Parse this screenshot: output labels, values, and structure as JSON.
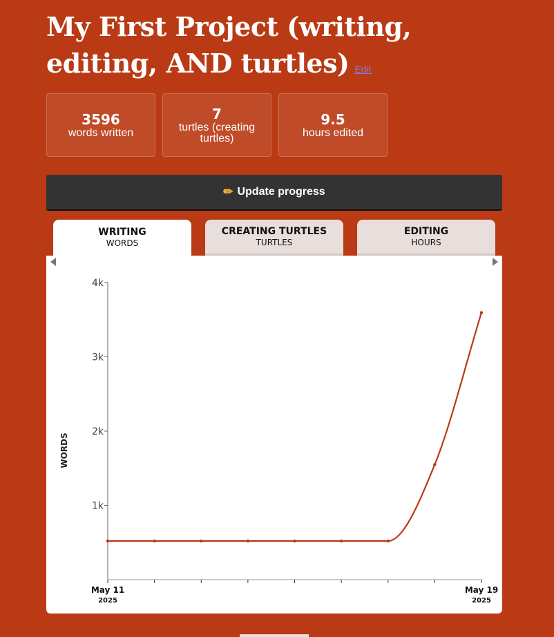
{
  "project": {
    "title": "My First Project (writing, editing, AND turtles)",
    "edit_label": "Edit"
  },
  "stats": [
    {
      "value": "3596",
      "label": "words written"
    },
    {
      "value": "7",
      "label": "turtles (creating turtles)"
    },
    {
      "value": "9.5",
      "label": "hours edited"
    }
  ],
  "update_button": {
    "icon": "pencil-icon",
    "label": "Update progress"
  },
  "tabs": [
    {
      "title": "WRITING",
      "unit": "WORDS",
      "active": true
    },
    {
      "title": "CREATING TURTLES",
      "unit": "TURTLES",
      "active": false
    },
    {
      "title": "EDITING",
      "unit": "HOURS",
      "active": false
    }
  ],
  "colors": {
    "background": "#b93a14",
    "line": "#b93a14",
    "button": "#333333"
  },
  "chart_data": {
    "type": "line",
    "ylabel": "WORDS",
    "ylim": [
      0,
      4000
    ],
    "yticks": [
      1000,
      2000,
      3000,
      4000
    ],
    "ytick_labels": [
      "1k",
      "2k",
      "3k",
      "4k"
    ],
    "x": [
      "May 11 2025",
      "May 12 2025",
      "May 13 2025",
      "May 14 2025",
      "May 15 2025",
      "May 16 2025",
      "May 17 2025",
      "May 18 2025",
      "May 19 2025"
    ],
    "values": [
      520,
      520,
      520,
      520,
      520,
      520,
      520,
      1550,
      3596
    ],
    "xlabel_start": {
      "day": "May 11",
      "year": "2025"
    },
    "xlabel_end": {
      "day": "May 19",
      "year": "2025"
    }
  }
}
